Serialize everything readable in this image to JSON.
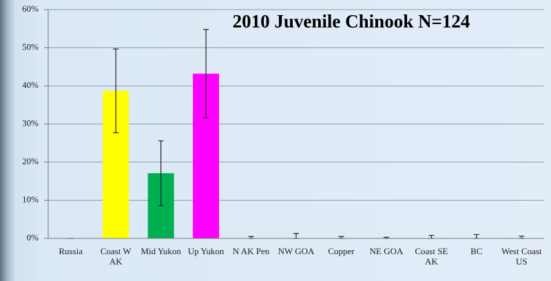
{
  "chart_data": {
    "type": "bar",
    "title": "2010 Juvenile Chinook N=124",
    "categories": [
      "Russia",
      "Coast W AK",
      "Mid Yukon",
      "Up Yukon",
      "N AK Pen",
      "NW GOA",
      "Copper",
      "NE GOA",
      "Coast SE AK",
      "BC",
      "West Coast US"
    ],
    "values": [
      0,
      38.7,
      17.1,
      43.2,
      0,
      0,
      0,
      0,
      0,
      0,
      0
    ],
    "errors": [
      0,
      11,
      8.5,
      11.6,
      0.5,
      1.3,
      0.5,
      0.3,
      0.8,
      1,
      0.6
    ],
    "colors": [
      null,
      "#ffff00",
      "#00b050",
      "#ff00ff",
      null,
      null,
      null,
      null,
      null,
      null,
      null
    ],
    "ylim": [
      0,
      60
    ],
    "yticks": [
      {
        "value": 0,
        "label": "0%"
      },
      {
        "value": 10,
        "label": "10%"
      },
      {
        "value": 20,
        "label": "20%"
      },
      {
        "value": 30,
        "label": "30%"
      },
      {
        "value": 40,
        "label": "40%"
      },
      {
        "value": 50,
        "label": "50%"
      },
      {
        "value": 60,
        "label": "60%"
      }
    ],
    "grid": true
  }
}
